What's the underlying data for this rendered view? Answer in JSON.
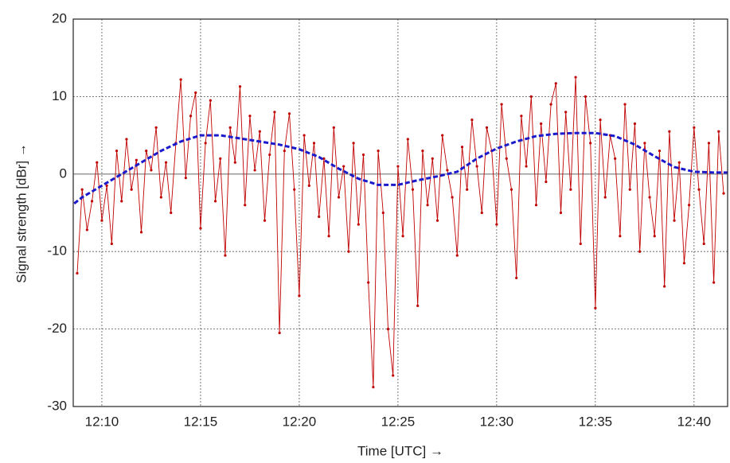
{
  "chart_data": {
    "type": "line",
    "x_label": "Time  [UTC]  →",
    "y_label": "Signal strength  [dBr]  →",
    "xlim": [
      8.55,
      41.7
    ],
    "ylim": [
      -30,
      20
    ],
    "xticks": [
      {
        "value": 10,
        "label": "12:10"
      },
      {
        "value": 15,
        "label": "12:15"
      },
      {
        "value": 20,
        "label": "12:20"
      },
      {
        "value": 25,
        "label": "12:25"
      },
      {
        "value": 30,
        "label": "12:30"
      },
      {
        "value": 35,
        "label": "12:35"
      },
      {
        "value": 40,
        "label": "12:40"
      }
    ],
    "yticks": [
      -30,
      -20,
      -10,
      0,
      10,
      20
    ],
    "grid": true,
    "series": [
      {
        "color": "#c00000",
        "style": "solid",
        "markers": true,
        "x": [
          8.75,
          9,
          9.25,
          9.5,
          9.75,
          10,
          10.25,
          10.5,
          10.75,
          11,
          11.25,
          11.5,
          11.75,
          12,
          12.25,
          12.5,
          12.75,
          13,
          13.25,
          13.5,
          13.75,
          14,
          14.25,
          14.5,
          14.75,
          15,
          15.25,
          15.5,
          15.75,
          16,
          16.25,
          16.5,
          16.75,
          17,
          17.25,
          17.5,
          17.75,
          18,
          18.25,
          18.5,
          18.75,
          19,
          19.25,
          19.5,
          19.75,
          20,
          20.25,
          20.5,
          20.75,
          21,
          21.25,
          21.5,
          21.75,
          22,
          22.25,
          22.5,
          22.75,
          23,
          23.25,
          23.5,
          23.75,
          24,
          24.25,
          24.5,
          24.75,
          25,
          25.25,
          25.5,
          25.75,
          26,
          26.25,
          26.5,
          26.75,
          27,
          27.25,
          27.5,
          27.75,
          28,
          28.25,
          28.5,
          28.75,
          29,
          29.25,
          29.5,
          29.75,
          30,
          30.25,
          30.5,
          30.75,
          31,
          31.25,
          31.5,
          31.75,
          32,
          32.25,
          32.5,
          32.75,
          33,
          33.25,
          33.5,
          33.75,
          34,
          34.25,
          34.5,
          34.75,
          35,
          35.25,
          35.5,
          35.75,
          36,
          36.25,
          36.5,
          36.75,
          37,
          37.25,
          37.5,
          37.75,
          38,
          38.25,
          38.5,
          38.75,
          39,
          39.25,
          39.5,
          39.75,
          40,
          40.25,
          40.5,
          40.75,
          41,
          41.25,
          41.5
        ],
        "values": [
          -12.8,
          -2,
          -7.2,
          -3.5,
          1.5,
          -6,
          -1.5,
          -9,
          3,
          -3.5,
          4.5,
          -2,
          1.8,
          -7.5,
          3,
          0.5,
          6,
          -3,
          1.5,
          -5,
          4,
          12.2,
          -0.5,
          7.5,
          10.5,
          -7,
          4,
          9.5,
          -3.5,
          2,
          -10.5,
          6,
          1.5,
          11.3,
          -4,
          7.5,
          0.5,
          5.5,
          -6,
          2.5,
          8,
          -20.5,
          3,
          7.8,
          -2,
          -15.7,
          5,
          -1.5,
          4,
          -5.5,
          2,
          -8,
          6,
          -3,
          1,
          -10,
          4,
          -6.5,
          2.5,
          -14,
          -27.5,
          3,
          -5,
          -20,
          -26,
          1,
          -8,
          4.5,
          -2,
          -17,
          3,
          -4,
          2,
          -6,
          5,
          0.5,
          -3,
          -10.5,
          3.5,
          -2,
          7,
          1,
          -5,
          6,
          3,
          -6.5,
          9,
          2,
          -2,
          -13.4,
          7.5,
          1,
          10,
          -4,
          6.5,
          -1,
          9,
          11.7,
          -5,
          8,
          -2,
          12.5,
          -9,
          10,
          4,
          -17.3,
          7,
          -3,
          5,
          2,
          -8,
          9,
          -2,
          6.5,
          -10,
          4,
          -3,
          -8,
          3,
          -14.5,
          5.5,
          -6,
          1.5,
          -11.5,
          -4,
          6,
          -2,
          -9,
          4,
          -14,
          5.5,
          -2.5
        ]
      },
      {
        "color": "#1a1acc",
        "style": "dashed",
        "markers": false,
        "x": [
          8.6,
          9,
          10,
          11,
          12,
          13,
          14,
          15,
          16,
          17,
          18,
          19,
          20,
          21,
          22,
          23,
          24,
          25,
          26,
          27,
          28,
          29,
          30,
          31,
          32,
          33,
          34,
          35,
          36,
          37,
          38,
          39,
          40,
          41,
          41.7
        ],
        "values": [
          -3.8,
          -3,
          -1.5,
          0,
          1.5,
          3,
          4.2,
          5,
          5,
          4.6,
          4.2,
          3.8,
          3.2,
          2.2,
          0.7,
          -0.6,
          -1.4,
          -1.4,
          -0.8,
          -0.3,
          0.3,
          2,
          3.3,
          4.2,
          4.9,
          5.2,
          5.3,
          5.3,
          4.9,
          3.8,
          2.3,
          0.9,
          0.3,
          0.2,
          0.2
        ]
      }
    ]
  }
}
